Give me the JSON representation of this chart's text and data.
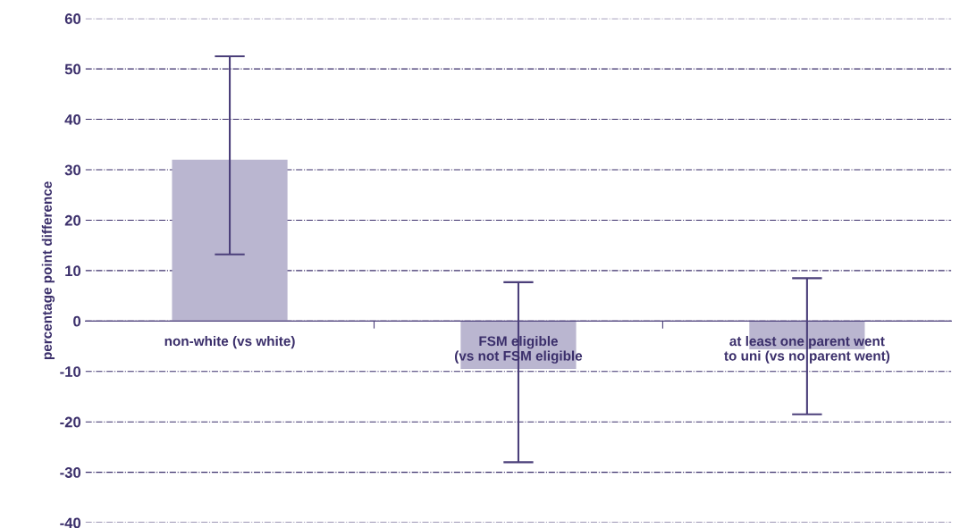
{
  "chart_data": {
    "type": "bar",
    "ylabel": "percentage point difference",
    "categories": [
      "non-white (vs white)",
      "FSM eligible\n(vs not FSM eligible",
      "at least one parent went\nto uni (vs no parent went)"
    ],
    "values": [
      32.0,
      -9.5,
      -5.6
    ],
    "color": "#bab6d0",
    "errors": [
      [
        13.2,
        52.5
      ],
      [
        -28.0,
        7.7
      ],
      [
        -18.5,
        8.5
      ]
    ],
    "ylim": [
      -40,
      60
    ],
    "yticks": [
      -40,
      -30,
      -20,
      -10,
      0,
      10,
      20,
      30,
      40,
      50,
      60
    ],
    "grid": "y"
  }
}
